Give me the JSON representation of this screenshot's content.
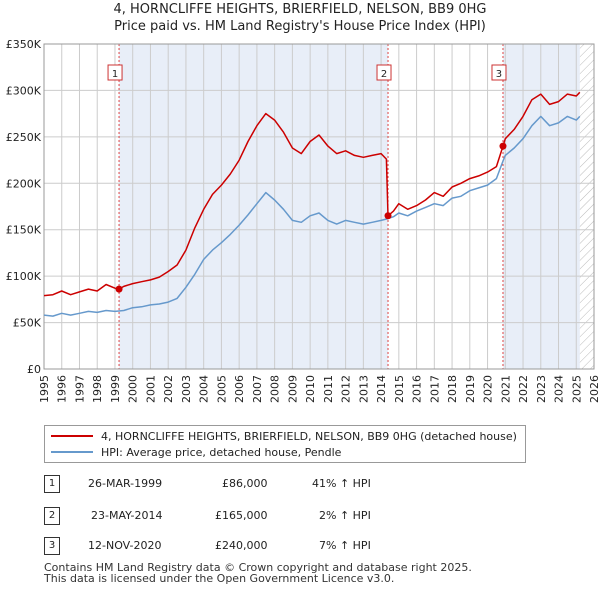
{
  "title_line1": "4, HORNCLIFFE HEIGHTS, BRIERFIELD, NELSON, BB9 0HG",
  "title_line2": "Price paid vs. HM Land Registry's House Price Index (HPI)",
  "legend": {
    "red_label": "4, HORNCLIFFE HEIGHTS, BRIERFIELD, NELSON, BB9 0HG (detached house)",
    "blue_label": "HPI: Average price, detached house, Pendle"
  },
  "transactions": [
    {
      "num": "1",
      "date": "26-MAR-1999",
      "price": "£86,000",
      "hpi": "41% ↑ HPI"
    },
    {
      "num": "2",
      "date": "23-MAY-2014",
      "price": "£165,000",
      "hpi": "2% ↑ HPI"
    },
    {
      "num": "3",
      "date": "12-NOV-2020",
      "price": "£240,000",
      "hpi": "7% ↑ HPI"
    }
  ],
  "footer_line1": "Contains HM Land Registry data © Crown copyright and database right 2025.",
  "footer_line2": "This data is licensed under the Open Government Licence v3.0.",
  "colors": {
    "red": "#cc0000",
    "blue": "#6699cc",
    "shade": "#e8eef8",
    "grid": "#cccccc"
  },
  "chart_data": {
    "type": "line",
    "xlim": [
      1995,
      2026
    ],
    "ylim": [
      0,
      350000
    ],
    "y_ticks": [
      0,
      50000,
      100000,
      150000,
      200000,
      250000,
      300000,
      350000
    ],
    "y_tick_labels": [
      "£0",
      "£50K",
      "£100K",
      "£150K",
      "£200K",
      "£250K",
      "£300K",
      "£350K"
    ],
    "x_ticks": [
      "1995",
      "1996",
      "1997",
      "1998",
      "1999",
      "2000",
      "2001",
      "2002",
      "2003",
      "2004",
      "2005",
      "2006",
      "2007",
      "2008",
      "2009",
      "2010",
      "2011",
      "2012",
      "2013",
      "2014",
      "2015",
      "2016",
      "2017",
      "2018",
      "2019",
      "2020",
      "2021",
      "2022",
      "2023",
      "2024",
      "2025",
      "2026"
    ],
    "sales": [
      {
        "label": "1",
        "x": 1999.23,
        "y": 86000
      },
      {
        "label": "2",
        "x": 2014.39,
        "y": 165000
      },
      {
        "label": "3",
        "x": 2020.87,
        "y": 240000
      }
    ],
    "shaded_regions": [
      [
        1999.23,
        2014.39
      ],
      [
        2020.87,
        2025.2
      ]
    ],
    "hatched_after": 2025.2,
    "series": [
      {
        "name": "4, HORNCLIFFE HEIGHTS, BRIERFIELD, NELSON, BB9 0HG (detached house)",
        "color": "#cc0000",
        "points": [
          [
            1995,
            79000
          ],
          [
            1995.5,
            80000
          ],
          [
            1996,
            84000
          ],
          [
            1996.5,
            80000
          ],
          [
            1997,
            83000
          ],
          [
            1997.5,
            86000
          ],
          [
            1998,
            84000
          ],
          [
            1998.5,
            91000
          ],
          [
            1999,
            87000
          ],
          [
            1999.23,
            86000
          ],
          [
            1999.5,
            89000
          ],
          [
            2000,
            92000
          ],
          [
            2000.5,
            94000
          ],
          [
            2001,
            96000
          ],
          [
            2001.5,
            99000
          ],
          [
            2002,
            105000
          ],
          [
            2002.5,
            112000
          ],
          [
            2003,
            128000
          ],
          [
            2003.5,
            152000
          ],
          [
            2004,
            172000
          ],
          [
            2004.5,
            188000
          ],
          [
            2005,
            198000
          ],
          [
            2005.5,
            210000
          ],
          [
            2006,
            225000
          ],
          [
            2006.5,
            245000
          ],
          [
            2007,
            262000
          ],
          [
            2007.5,
            275000
          ],
          [
            2008,
            268000
          ],
          [
            2008.5,
            255000
          ],
          [
            2009,
            238000
          ],
          [
            2009.5,
            232000
          ],
          [
            2010,
            245000
          ],
          [
            2010.5,
            252000
          ],
          [
            2011,
            240000
          ],
          [
            2011.5,
            232000
          ],
          [
            2012,
            235000
          ],
          [
            2012.5,
            230000
          ],
          [
            2013,
            228000
          ],
          [
            2013.5,
            230000
          ],
          [
            2014,
            232000
          ],
          [
            2014.3,
            226000
          ],
          [
            2014.39,
            165000
          ],
          [
            2014.7,
            170000
          ],
          [
            2015,
            178000
          ],
          [
            2015.5,
            172000
          ],
          [
            2016,
            176000
          ],
          [
            2016.5,
            182000
          ],
          [
            2017,
            190000
          ],
          [
            2017.5,
            186000
          ],
          [
            2018,
            196000
          ],
          [
            2018.5,
            200000
          ],
          [
            2019,
            205000
          ],
          [
            2019.5,
            208000
          ],
          [
            2020,
            212000
          ],
          [
            2020.5,
            218000
          ],
          [
            2020.87,
            240000
          ],
          [
            2021,
            248000
          ],
          [
            2021.5,
            258000
          ],
          [
            2022,
            272000
          ],
          [
            2022.5,
            290000
          ],
          [
            2023,
            296000
          ],
          [
            2023.5,
            285000
          ],
          [
            2024,
            288000
          ],
          [
            2024.5,
            296000
          ],
          [
            2025,
            294000
          ],
          [
            2025.2,
            298000
          ]
        ]
      },
      {
        "name": "HPI: Average price, detached house, Pendle",
        "color": "#6699cc",
        "points": [
          [
            1995,
            58000
          ],
          [
            1995.5,
            57000
          ],
          [
            1996,
            60000
          ],
          [
            1996.5,
            58000
          ],
          [
            1997,
            60000
          ],
          [
            1997.5,
            62000
          ],
          [
            1998,
            61000
          ],
          [
            1998.5,
            63000
          ],
          [
            1999,
            62000
          ],
          [
            1999.5,
            63000
          ],
          [
            2000,
            66000
          ],
          [
            2000.5,
            67000
          ],
          [
            2001,
            69000
          ],
          [
            2001.5,
            70000
          ],
          [
            2002,
            72000
          ],
          [
            2002.5,
            76000
          ],
          [
            2003,
            88000
          ],
          [
            2003.5,
            102000
          ],
          [
            2004,
            118000
          ],
          [
            2004.5,
            128000
          ],
          [
            2005,
            136000
          ],
          [
            2005.5,
            145000
          ],
          [
            2006,
            155000
          ],
          [
            2006.5,
            166000
          ],
          [
            2007,
            178000
          ],
          [
            2007.5,
            190000
          ],
          [
            2008,
            182000
          ],
          [
            2008.5,
            172000
          ],
          [
            2009,
            160000
          ],
          [
            2009.5,
            158000
          ],
          [
            2010,
            165000
          ],
          [
            2010.5,
            168000
          ],
          [
            2011,
            160000
          ],
          [
            2011.5,
            156000
          ],
          [
            2012,
            160000
          ],
          [
            2012.5,
            158000
          ],
          [
            2013,
            156000
          ],
          [
            2013.5,
            158000
          ],
          [
            2014,
            160000
          ],
          [
            2014.39,
            162000
          ],
          [
            2014.7,
            164000
          ],
          [
            2015,
            168000
          ],
          [
            2015.5,
            165000
          ],
          [
            2016,
            170000
          ],
          [
            2016.5,
            174000
          ],
          [
            2017,
            178000
          ],
          [
            2017.5,
            176000
          ],
          [
            2018,
            184000
          ],
          [
            2018.5,
            186000
          ],
          [
            2019,
            192000
          ],
          [
            2019.5,
            195000
          ],
          [
            2020,
            198000
          ],
          [
            2020.5,
            205000
          ],
          [
            2020.87,
            224000
          ],
          [
            2021,
            230000
          ],
          [
            2021.5,
            238000
          ],
          [
            2022,
            248000
          ],
          [
            2022.5,
            262000
          ],
          [
            2023,
            272000
          ],
          [
            2023.5,
            262000
          ],
          [
            2024,
            265000
          ],
          [
            2024.5,
            272000
          ],
          [
            2025,
            268000
          ],
          [
            2025.2,
            272000
          ]
        ]
      }
    ]
  }
}
